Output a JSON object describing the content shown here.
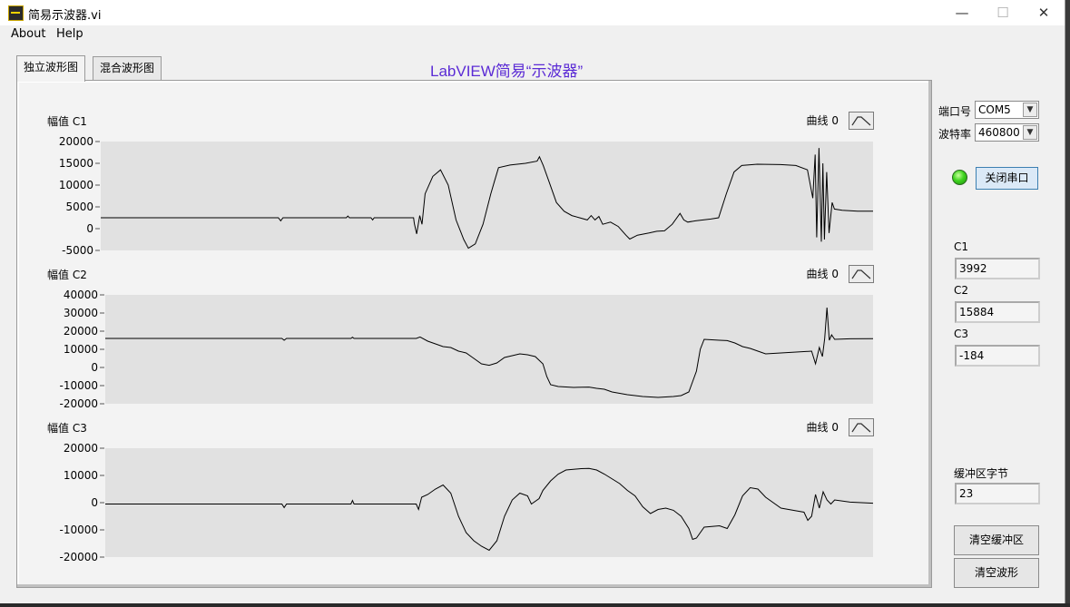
{
  "window": {
    "title": "简易示波器.vi",
    "minimize": "—",
    "maximize": "☐",
    "close": "✕"
  },
  "menu": {
    "about": "About",
    "help": "Help"
  },
  "tabs": [
    {
      "label": "独立波形图"
    },
    {
      "label": "混合波形图"
    }
  ],
  "heading": "LabVIEW简易“示波器”",
  "controls": {
    "port_label": "端口号",
    "port_value": "COM5",
    "baud_label": "波特率",
    "baud_value": "460800",
    "close_port_button": "关闭串口",
    "led_color": "#3fd41f"
  },
  "readouts": [
    {
      "label": "C1",
      "value": "3992"
    },
    {
      "label": "C2",
      "value": "15884"
    },
    {
      "label": "C3",
      "value": "-184"
    }
  ],
  "buffer": {
    "label": "缓冲区字节",
    "value": "23"
  },
  "buttons": {
    "clear_buffer": "清空缓冲区",
    "clear_waveform": "清空波形"
  },
  "chart_data": [
    {
      "type": "line",
      "ylabel": "幅值 C1",
      "ylim": [
        -5000,
        20000
      ],
      "yticks": [
        20000,
        15000,
        10000,
        5000,
        0,
        -5000
      ],
      "xlim": [
        0,
        100
      ],
      "series": [
        {
          "name": "曲线 0",
          "color": "#000000",
          "points": [
            [
              0,
              2500
            ],
            [
              23,
              2500
            ],
            [
              23.3,
              1800
            ],
            [
              23.6,
              2500
            ],
            [
              31.8,
              2500
            ],
            [
              32,
              2900
            ],
            [
              32.2,
              2500
            ],
            [
              35,
              2500
            ],
            [
              35.2,
              2000
            ],
            [
              35.4,
              2500
            ],
            [
              40.5,
              2500
            ],
            [
              40.6,
              1200
            ],
            [
              40.9,
              -1200
            ],
            [
              41.3,
              3000
            ],
            [
              41.6,
              1000
            ],
            [
              42,
              8000
            ],
            [
              43,
              12000
            ],
            [
              44,
              13500
            ],
            [
              45,
              10000
            ],
            [
              46,
              2000
            ],
            [
              47,
              -2500
            ],
            [
              47.6,
              -4500
            ],
            [
              48.5,
              -3500
            ],
            [
              49.5,
              1000
            ],
            [
              50.5,
              8000
            ],
            [
              51,
              11000
            ],
            [
              51.5,
              14000
            ],
            [
              53,
              14600
            ],
            [
              55,
              15000
            ],
            [
              56.5,
              15500
            ],
            [
              56.8,
              16500
            ],
            [
              57.3,
              14500
            ],
            [
              58,
              11000
            ],
            [
              59,
              6000
            ],
            [
              60,
              4000
            ],
            [
              61,
              3000
            ],
            [
              62,
              2500
            ],
            [
              63,
              2000
            ],
            [
              63.5,
              3000
            ],
            [
              64,
              2000
            ],
            [
              64.5,
              2800
            ],
            [
              65,
              1000
            ],
            [
              66,
              1500
            ],
            [
              67,
              500
            ],
            [
              68,
              -1500
            ],
            [
              68.5,
              -2400
            ],
            [
              69.5,
              -1500
            ],
            [
              71,
              -1000
            ],
            [
              72,
              -600
            ],
            [
              73,
              -500
            ],
            [
              74,
              1000
            ],
            [
              75,
              3500
            ],
            [
              75.5,
              2000
            ],
            [
              76,
              1500
            ],
            [
              77,
              1800
            ],
            [
              79,
              2200
            ],
            [
              80,
              2500
            ],
            [
              81,
              8000
            ],
            [
              82,
              13000
            ],
            [
              83,
              14500
            ],
            [
              85,
              14800
            ],
            [
              88,
              14700
            ],
            [
              90,
              14500
            ],
            [
              91.5,
              13500
            ],
            [
              92.2,
              7000
            ],
            [
              92.5,
              17000
            ],
            [
              92.7,
              -2000
            ],
            [
              93,
              18500
            ],
            [
              93.3,
              -3000
            ],
            [
              93.5,
              15000
            ],
            [
              93.7,
              -2500
            ],
            [
              94,
              13000
            ],
            [
              94.3,
              -1000
            ],
            [
              94.7,
              6000
            ],
            [
              95,
              4500
            ],
            [
              96,
              4200
            ],
            [
              98,
              4000
            ],
            [
              100,
              3992
            ]
          ]
        }
      ]
    },
    {
      "type": "line",
      "ylabel": "幅值 C2",
      "ylim": [
        -20000,
        40000
      ],
      "yticks": [
        40000,
        30000,
        20000,
        10000,
        0,
        -10000,
        -20000
      ],
      "xlim": [
        0,
        100
      ],
      "series": [
        {
          "name": "曲线 0",
          "color": "#000000",
          "points": [
            [
              0,
              16000
            ],
            [
              23,
              16000
            ],
            [
              23.3,
              15000
            ],
            [
              23.6,
              16000
            ],
            [
              32,
              16000
            ],
            [
              32.2,
              16700
            ],
            [
              32.4,
              16000
            ],
            [
              40.5,
              16000
            ],
            [
              41,
              16800
            ],
            [
              42,
              14500
            ],
            [
              43,
              13000
            ],
            [
              44,
              11500
            ],
            [
              45,
              11000
            ],
            [
              46,
              9000
            ],
            [
              47,
              8000
            ],
            [
              48,
              5000
            ],
            [
              49,
              2000
            ],
            [
              50,
              1200
            ],
            [
              51,
              2500
            ],
            [
              52,
              5500
            ],
            [
              53,
              6500
            ],
            [
              54,
              7500
            ],
            [
              55,
              7000
            ],
            [
              56,
              6000
            ],
            [
              57,
              2000
            ],
            [
              57.5,
              -5000
            ],
            [
              58,
              -9500
            ],
            [
              59,
              -10500
            ],
            [
              61,
              -11000
            ],
            [
              63,
              -10800
            ],
            [
              64,
              -11500
            ],
            [
              65,
              -12000
            ],
            [
              66,
              -13500
            ],
            [
              68,
              -15000
            ],
            [
              70,
              -16000
            ],
            [
              72,
              -16500
            ],
            [
              74,
              -16000
            ],
            [
              75,
              -15500
            ],
            [
              76,
              -13500
            ],
            [
              77,
              -2000
            ],
            [
              77.5,
              10000
            ],
            [
              78,
              15500
            ],
            [
              80,
              15000
            ],
            [
              81,
              14800
            ],
            [
              82,
              13500
            ],
            [
              83,
              11500
            ],
            [
              84,
              10500
            ],
            [
              85,
              9000
            ],
            [
              86,
              7500
            ],
            [
              88,
              8000
            ],
            [
              90,
              8500
            ],
            [
              92,
              9000
            ],
            [
              92.5,
              2000
            ],
            [
              93,
              11000
            ],
            [
              93.4,
              6000
            ],
            [
              93.7,
              16000
            ],
            [
              94,
              33000
            ],
            [
              94.3,
              15000
            ],
            [
              94.6,
              18000
            ],
            [
              95,
              15500
            ],
            [
              97,
              15800
            ],
            [
              100,
              15884
            ]
          ]
        }
      ]
    },
    {
      "type": "line",
      "ylabel": "幅值 C3",
      "ylim": [
        -20000,
        20000
      ],
      "yticks": [
        20000,
        10000,
        0,
        -10000,
        -20000
      ],
      "xlim": [
        0,
        100
      ],
      "series": [
        {
          "name": "曲线 0",
          "color": "#000000",
          "points": [
            [
              0,
              -500
            ],
            [
              23,
              -500
            ],
            [
              23.3,
              -1800
            ],
            [
              23.6,
              -500
            ],
            [
              32,
              -500
            ],
            [
              32.2,
              800
            ],
            [
              32.4,
              -500
            ],
            [
              40.5,
              -500
            ],
            [
              40.8,
              -2500
            ],
            [
              41.2,
              2000
            ],
            [
              42,
              3000
            ],
            [
              43,
              5000
            ],
            [
              44,
              6500
            ],
            [
              45,
              3500
            ],
            [
              46,
              -5000
            ],
            [
              47,
              -11000
            ],
            [
              48,
              -14000
            ],
            [
              49,
              -16000
            ],
            [
              50,
              -17500
            ],
            [
              51,
              -14000
            ],
            [
              52,
              -5000
            ],
            [
              53,
              1000
            ],
            [
              54,
              3500
            ],
            [
              55,
              2500
            ],
            [
              55.5,
              -500
            ],
            [
              56.5,
              1500
            ],
            [
              57,
              4500
            ],
            [
              58,
              8000
            ],
            [
              59,
              10500
            ],
            [
              60,
              12000
            ],
            [
              62,
              12500
            ],
            [
              63,
              12600
            ],
            [
              64,
              12000
            ],
            [
              65,
              10500
            ],
            [
              67,
              7000
            ],
            [
              68,
              4500
            ],
            [
              69,
              2500
            ],
            [
              70,
              -1500
            ],
            [
              71,
              -4000
            ],
            [
              72,
              -2500
            ],
            [
              73,
              -2000
            ],
            [
              74,
              -2800
            ],
            [
              75,
              -5000
            ],
            [
              76,
              -9500
            ],
            [
              76.5,
              -13500
            ],
            [
              77,
              -13000
            ],
            [
              78,
              -9000
            ],
            [
              80,
              -8500
            ],
            [
              81,
              -9500
            ],
            [
              82,
              -4500
            ],
            [
              83,
              2500
            ],
            [
              84,
              5500
            ],
            [
              85,
              5000
            ],
            [
              86,
              2000
            ],
            [
              88,
              -2000
            ],
            [
              90,
              -3000
            ],
            [
              91,
              -3500
            ],
            [
              91.5,
              -6500
            ],
            [
              92,
              -5000
            ],
            [
              92.5,
              3000
            ],
            [
              93,
              -2000
            ],
            [
              93.5,
              4000
            ],
            [
              94,
              1000
            ],
            [
              94.5,
              -500
            ],
            [
              95,
              1000
            ],
            [
              97,
              200
            ],
            [
              100,
              -184
            ]
          ]
        }
      ]
    }
  ]
}
